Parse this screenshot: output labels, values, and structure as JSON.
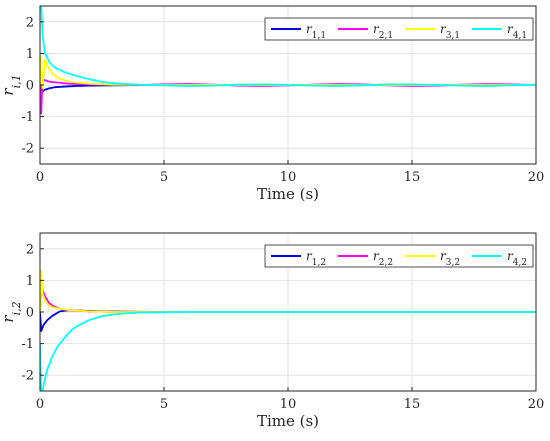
{
  "chart_data": [
    {
      "type": "line",
      "xlabel": "Time (s)",
      "ylabel": "r_{i,1}",
      "ylabel_base": "r",
      "ylabel_sub": "i,1",
      "xlim": [
        0,
        20
      ],
      "ylim": [
        -2.5,
        2.5
      ],
      "xticks": [
        0,
        5,
        10,
        15,
        20
      ],
      "yticks": [
        -2,
        -1,
        0,
        1,
        2
      ],
      "grid": true,
      "legend_position": "top-right",
      "series": [
        {
          "name": "r_{1,1}",
          "label_base": "r",
          "label_sub": "1,1",
          "color": "#0000e0",
          "x": [
            0,
            0.1,
            0.2,
            0.4,
            0.6,
            1,
            1.5,
            2,
            3,
            5,
            10,
            15,
            20
          ],
          "y": [
            0,
            -0.2,
            -0.15,
            -0.1,
            -0.07,
            -0.05,
            -0.03,
            -0.02,
            -0.01,
            0,
            0,
            0,
            0
          ]
        },
        {
          "name": "r_{2,1}",
          "label_base": "r",
          "label_sub": "2,1",
          "color": "#ff00ff",
          "x": [
            0,
            0.05,
            0.1,
            0.2,
            0.4,
            0.8,
            1.2,
            2,
            3,
            4,
            5,
            6,
            7,
            8,
            9,
            10,
            11,
            12,
            13,
            14,
            15,
            16,
            17,
            18,
            19,
            20
          ],
          "y": [
            0,
            -0.9,
            0.2,
            0.15,
            0.1,
            0.07,
            0.04,
            0.02,
            0.01,
            0,
            0.02,
            0.03,
            0.01,
            -0.02,
            -0.03,
            -0.01,
            0.01,
            0.03,
            0.02,
            -0.01,
            -0.03,
            -0.02,
            0.01,
            0.03,
            0.02,
            0
          ]
        },
        {
          "name": "r_{3,1}",
          "label_base": "r",
          "label_sub": "3,1",
          "color": "#ffff00",
          "x": [
            0,
            0.05,
            0.1,
            0.2,
            0.3,
            0.5,
            0.8,
            1.2,
            2,
            3,
            5,
            10,
            15,
            20
          ],
          "y": [
            0,
            0.9,
            -0.1,
            0.8,
            0.6,
            0.35,
            0.2,
            0.1,
            0.04,
            0.01,
            0,
            0,
            0,
            0
          ]
        },
        {
          "name": "r_{4,1}",
          "label_base": "r",
          "label_sub": "4,1",
          "color": "#00ffff",
          "x": [
            0,
            0.05,
            0.1,
            0.2,
            0.4,
            0.6,
            1,
            1.5,
            2,
            2.5,
            3,
            4,
            5,
            6,
            7,
            8,
            9,
            10,
            11,
            12,
            13,
            14,
            15,
            16,
            17,
            18,
            19,
            20
          ],
          "y": [
            2.5,
            2.5,
            1.6,
            1.0,
            0.7,
            0.55,
            0.4,
            0.28,
            0.18,
            0.1,
            0.05,
            0.01,
            -0.01,
            -0.03,
            -0.02,
            0.01,
            0.02,
            0,
            -0.02,
            -0.03,
            -0.01,
            0.02,
            0.02,
            0,
            -0.02,
            -0.03,
            -0.01,
            0.01
          ]
        }
      ]
    },
    {
      "type": "line",
      "xlabel": "Time (s)",
      "ylabel": "r_{i,2}",
      "ylabel_base": "r",
      "ylabel_sub": "i,2",
      "xlim": [
        0,
        20
      ],
      "ylim": [
        -2.5,
        2.5
      ],
      "xticks": [
        0,
        5,
        10,
        15,
        20
      ],
      "yticks": [
        -2,
        -1,
        0,
        1,
        2
      ],
      "grid": true,
      "legend_position": "top-right",
      "series": [
        {
          "name": "r_{1,2}",
          "label_base": "r",
          "label_sub": "1,2",
          "color": "#0000e0",
          "x": [
            0,
            0.05,
            0.15,
            0.3,
            0.5,
            0.8,
            1.2,
            1.8,
            2.5,
            3.5,
            5,
            10,
            15,
            20
          ],
          "y": [
            0,
            -0.6,
            -0.4,
            -0.25,
            -0.12,
            0.02,
            0.06,
            0.04,
            0.02,
            0.01,
            0,
            0,
            0,
            0
          ]
        },
        {
          "name": "r_{2,2}",
          "label_base": "r",
          "label_sub": "2,2",
          "color": "#ff00ff",
          "x": [
            0,
            0.05,
            0.1,
            0.2,
            0.35,
            0.5,
            0.8,
            1.2,
            2,
            3,
            4,
            5,
            10,
            15,
            20
          ],
          "y": [
            0,
            0.8,
            0.7,
            0.5,
            0.3,
            0.2,
            0.1,
            0.05,
            0.02,
            0,
            0,
            0,
            0,
            0,
            0
          ]
        },
        {
          "name": "r_{3,2}",
          "label_base": "r",
          "label_sub": "3,2",
          "color": "#ffff00",
          "x": [
            0,
            0.05,
            0.1,
            0.2,
            0.35,
            0.5,
            0.8,
            1.2,
            2,
            3,
            5,
            10,
            15,
            20
          ],
          "y": [
            0,
            1.3,
            0.6,
            0.35,
            0.22,
            0.15,
            0.1,
            0.06,
            0.02,
            0,
            0,
            0,
            0,
            0
          ]
        },
        {
          "name": "r_{4,2}",
          "label_base": "r",
          "label_sub": "4,2",
          "color": "#00ffff",
          "x": [
            0,
            0.05,
            0.1,
            0.2,
            0.3,
            0.5,
            0.7,
            1,
            1.3,
            1.6,
            2,
            2.5,
            3,
            3.5,
            4,
            5,
            6,
            8,
            10,
            15,
            20
          ],
          "y": [
            -1.0,
            -2.5,
            -2.5,
            -2.1,
            -1.8,
            -1.4,
            -1.1,
            -0.8,
            -0.55,
            -0.4,
            -0.25,
            -0.13,
            -0.07,
            -0.04,
            -0.02,
            -0.01,
            0,
            0,
            0,
            0,
            0
          ]
        }
      ]
    }
  ]
}
